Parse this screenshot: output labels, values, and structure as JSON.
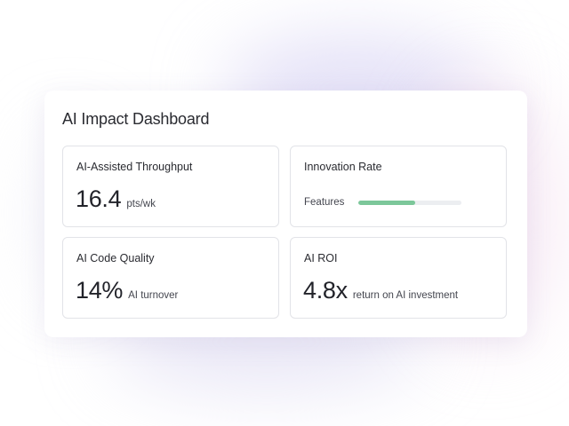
{
  "dashboard": {
    "title": "AI Impact Dashboard",
    "cards": [
      {
        "label": "AI-Assisted Throughput",
        "value": "16.4",
        "unit": "pts/wk"
      },
      {
        "label": "Innovation Rate",
        "bar_label": "Features",
        "bar_progress": 0.55,
        "bar_color": "#7cc79a"
      },
      {
        "label": "AI Code Quality",
        "value": "14%",
        "unit": "AI turnover"
      },
      {
        "label": "AI ROI",
        "value": "4.8x",
        "unit": "return on AI investment"
      }
    ]
  }
}
